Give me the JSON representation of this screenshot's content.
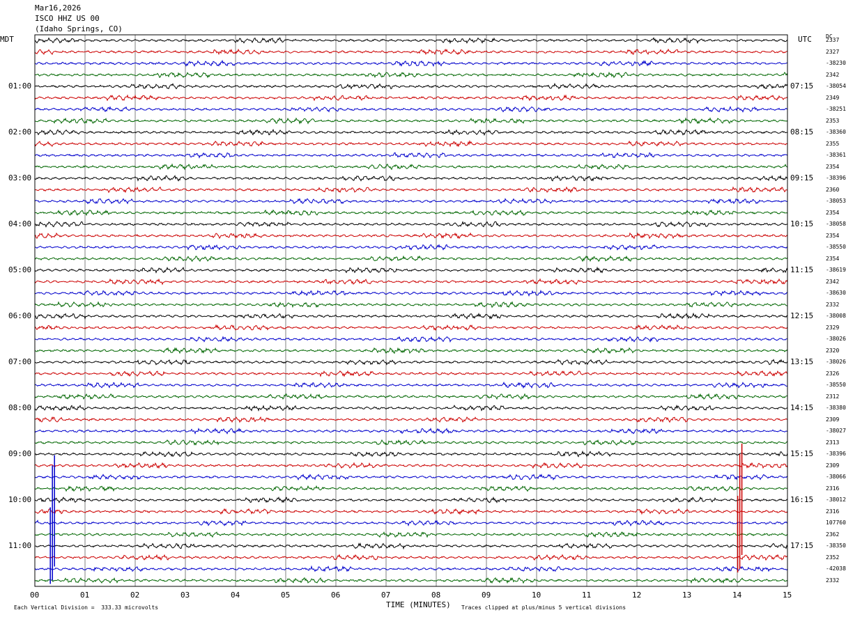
{
  "header": {
    "date": "Mar16,2026",
    "station": "ISCO HHZ US 00",
    "location": "(Idaho Springs, CO)"
  },
  "left_timezone": "MDT",
  "right_timezone": "UTC",
  "dc_label": "DC",
  "footer": {
    "scale_note": "Each Vertical Division =  333.33 microvolts",
    "clip_note": "Traces clipped at plus/minus 5 vertical divisions"
  },
  "colors": {
    "trace_cycle": [
      "#000000",
      "#cc0000",
      "#0000cc",
      "#006600"
    ],
    "grid": "#808080"
  },
  "chart_data": {
    "type": "line",
    "title": "",
    "xlabel": "TIME (MINUTES)",
    "x_ticks": [
      "00",
      "01",
      "02",
      "03",
      "04",
      "05",
      "06",
      "07",
      "08",
      "09",
      "10",
      "11",
      "12",
      "13",
      "14",
      "15"
    ],
    "xlim": [
      0,
      15
    ],
    "rows_per_hour": 4,
    "row_count": 48,
    "left_hour_labels": [
      "01:00",
      "02:00",
      "03:00",
      "04:00",
      "05:00",
      "06:00",
      "07:00",
      "08:00",
      "09:00",
      "10:00",
      "11:00"
    ],
    "right_hour_labels": [
      "07:15",
      "08:15",
      "09:15",
      "10:15",
      "11:15",
      "12:15",
      "13:15",
      "14:15",
      "15:15",
      "16:15",
      "17:15"
    ],
    "dc_offsets": [
      "2337",
      "2327",
      "-38230",
      "2342",
      "-38054",
      "2349",
      "-38251",
      "2353",
      "-38360",
      "2355",
      "-38361",
      "2354",
      "-38396",
      "2360",
      "-38053",
      "2354",
      "-38058",
      "2354",
      "-38550",
      "2354",
      "-38619",
      "2342",
      "-38630",
      "2332",
      "-38008",
      "2329",
      "-38026",
      "2320",
      "-38026",
      "2326",
      "-38550",
      "2312",
      "-38380",
      "2309",
      "-38027",
      "2313",
      "-38396",
      "2309",
      "-38066",
      "2316",
      "-38012",
      "2316",
      "107760",
      "2362",
      "-38350",
      "2352",
      "-42038",
      "2332"
    ],
    "grid": true,
    "events": [
      {
        "label": "spike",
        "row_start": 37,
        "row_end": 47,
        "minute": 0.35
      },
      {
        "label": "spike",
        "row_start": 36,
        "row_end": 46,
        "minute": 14.05
      }
    ]
  }
}
